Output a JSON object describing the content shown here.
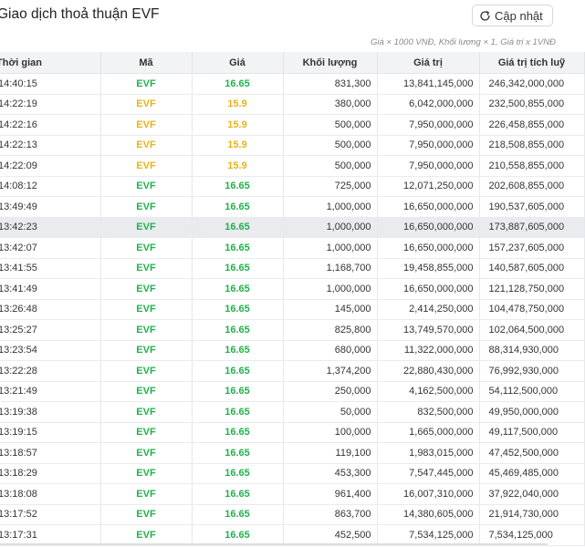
{
  "header": {
    "title": "Giao dịch thoả thuận EVF",
    "refresh_label": "Cập nhật",
    "refresh_icon": "refresh-icon",
    "note": "Giá × 1000 VNĐ, Khối lượng × 1, Giá trị x 1VNĐ"
  },
  "table": {
    "columns": {
      "time": "Thời gian",
      "code": "Mã",
      "price": "Giá",
      "volume": "Khối lượng",
      "value": "Giá trị",
      "cumulative": "Giá trị tích luỹ"
    },
    "colors": {
      "up": "#22b14c",
      "ref": "#e8b21a",
      "highlight_row": "#e9ebee"
    },
    "highlighted_row": 7,
    "rows": [
      {
        "time": "14:40:15",
        "code": "EVF",
        "price": "16.65",
        "volume": "831,300",
        "value": "13,841,145,000",
        "cumulative": "246,342,000,000",
        "trend": "up"
      },
      {
        "time": "14:22:19",
        "code": "EVF",
        "price": "15.9",
        "volume": "380,000",
        "value": "6,042,000,000",
        "cumulative": "232,500,855,000",
        "trend": "ref"
      },
      {
        "time": "14:22:16",
        "code": "EVF",
        "price": "15.9",
        "volume": "500,000",
        "value": "7,950,000,000",
        "cumulative": "226,458,855,000",
        "trend": "ref"
      },
      {
        "time": "14:22:13",
        "code": "EVF",
        "price": "15.9",
        "volume": "500,000",
        "value": "7,950,000,000",
        "cumulative": "218,508,855,000",
        "trend": "ref"
      },
      {
        "time": "14:22:09",
        "code": "EVF",
        "price": "15.9",
        "volume": "500,000",
        "value": "7,950,000,000",
        "cumulative": "210,558,855,000",
        "trend": "ref"
      },
      {
        "time": "14:08:12",
        "code": "EVF",
        "price": "16.65",
        "volume": "725,000",
        "value": "12,071,250,000",
        "cumulative": "202,608,855,000",
        "trend": "up"
      },
      {
        "time": "13:49:49",
        "code": "EVF",
        "price": "16.65",
        "volume": "1,000,000",
        "value": "16,650,000,000",
        "cumulative": "190,537,605,000",
        "trend": "up"
      },
      {
        "time": "13:42:23",
        "code": "EVF",
        "price": "16.65",
        "volume": "1,000,000",
        "value": "16,650,000,000",
        "cumulative": "173,887,605,000",
        "trend": "up"
      },
      {
        "time": "13:42:07",
        "code": "EVF",
        "price": "16.65",
        "volume": "1,000,000",
        "value": "16,650,000,000",
        "cumulative": "157,237,605,000",
        "trend": "up"
      },
      {
        "time": "13:41:55",
        "code": "EVF",
        "price": "16.65",
        "volume": "1,168,700",
        "value": "19,458,855,000",
        "cumulative": "140,587,605,000",
        "trend": "up"
      },
      {
        "time": "13:41:49",
        "code": "EVF",
        "price": "16.65",
        "volume": "1,000,000",
        "value": "16,650,000,000",
        "cumulative": "121,128,750,000",
        "trend": "up"
      },
      {
        "time": "13:26:48",
        "code": "EVF",
        "price": "16.65",
        "volume": "145,000",
        "value": "2,414,250,000",
        "cumulative": "104,478,750,000",
        "trend": "up"
      },
      {
        "time": "13:25:27",
        "code": "EVF",
        "price": "16.65",
        "volume": "825,800",
        "value": "13,749,570,000",
        "cumulative": "102,064,500,000",
        "trend": "up"
      },
      {
        "time": "13:23:54",
        "code": "EVF",
        "price": "16.65",
        "volume": "680,000",
        "value": "11,322,000,000",
        "cumulative": "88,314,930,000",
        "trend": "up"
      },
      {
        "time": "13:22:28",
        "code": "EVF",
        "price": "16.65",
        "volume": "1,374,200",
        "value": "22,880,430,000",
        "cumulative": "76,992,930,000",
        "trend": "up"
      },
      {
        "time": "13:21:49",
        "code": "EVF",
        "price": "16.65",
        "volume": "250,000",
        "value": "4,162,500,000",
        "cumulative": "54,112,500,000",
        "trend": "up"
      },
      {
        "time": "13:19:38",
        "code": "EVF",
        "price": "16.65",
        "volume": "50,000",
        "value": "832,500,000",
        "cumulative": "49,950,000,000",
        "trend": "up"
      },
      {
        "time": "13:19:15",
        "code": "EVF",
        "price": "16.65",
        "volume": "100,000",
        "value": "1,665,000,000",
        "cumulative": "49,117,500,000",
        "trend": "up"
      },
      {
        "time": "13:18:57",
        "code": "EVF",
        "price": "16.65",
        "volume": "119,100",
        "value": "1,983,015,000",
        "cumulative": "47,452,500,000",
        "trend": "up"
      },
      {
        "time": "13:18:29",
        "code": "EVF",
        "price": "16.65",
        "volume": "453,300",
        "value": "7,547,445,000",
        "cumulative": "45,469,485,000",
        "trend": "up"
      },
      {
        "time": "13:18:08",
        "code": "EVF",
        "price": "16.65",
        "volume": "961,400",
        "value": "16,007,310,000",
        "cumulative": "37,922,040,000",
        "trend": "up"
      },
      {
        "time": "13:17:52",
        "code": "EVF",
        "price": "16.65",
        "volume": "863,700",
        "value": "14,380,605,000",
        "cumulative": "21,914,730,000",
        "trend": "up"
      },
      {
        "time": "13:17:31",
        "code": "EVF",
        "price": "16.65",
        "volume": "452,500",
        "value": "7,534,125,000",
        "cumulative": "7,534,125,000",
        "trend": "up"
      }
    ]
  }
}
